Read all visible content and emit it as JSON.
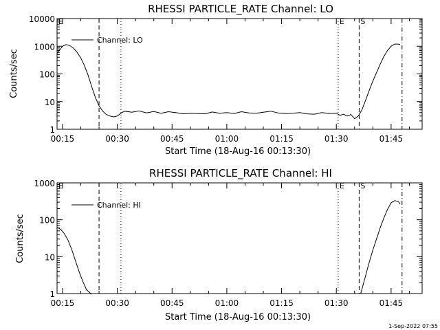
{
  "footer": {
    "date_stamp": "1-Sep-2022 07:55"
  },
  "chart_data": [
    {
      "type": "line",
      "title": "RHESSI PARTICLE_RATE Channel: LO",
      "xlabel": "Start Time (18-Aug-16 00:13:30)",
      "ylabel": "Counts/sec",
      "y_scale": "log",
      "ylim": [
        1,
        10000
      ],
      "y_ticks": [
        "1",
        "10",
        "100",
        "1000",
        "10000"
      ],
      "xlim_minutes": [
        13.5,
        113.5
      ],
      "x_ticks": [
        "00:15",
        "00:30",
        "00:45",
        "01:00",
        "01:15",
        "01:30",
        "01:45"
      ],
      "legend": {
        "label": "Channel: LO",
        "placement": "top-left"
      },
      "markers": [
        {
          "label": "E",
          "time": "00:13:30",
          "style": "solid"
        },
        {
          "label": "",
          "time": "00:25:00",
          "style": "dashed"
        },
        {
          "label": "",
          "time": "00:31:00",
          "style": "dotted"
        },
        {
          "label": "E",
          "time": "01:30:30",
          "style": "dotted"
        },
        {
          "label": "S",
          "time": "01:36:15",
          "style": "dashed"
        },
        {
          "label": "",
          "time": "01:48:00",
          "style": "dash-dot"
        }
      ],
      "series": [
        {
          "name": "Channel: LO",
          "x": [
            "00:13:30",
            "00:15:00",
            "00:16:00",
            "00:17:00",
            "00:18:00",
            "00:19:00",
            "00:20:00",
            "00:21:00",
            "00:22:00",
            "00:23:00",
            "00:24:00",
            "00:25:00",
            "00:26:00",
            "00:27:00",
            "00:28:00",
            "00:29:00",
            "00:30:00",
            "00:31:00",
            "00:32:00",
            "00:34:00",
            "00:36:00",
            "00:38:00",
            "00:40:00",
            "00:42:00",
            "00:44:00",
            "00:46:00",
            "00:48:00",
            "00:50:00",
            "00:52:00",
            "00:54:00",
            "00:56:00",
            "00:58:00",
            "01:00:00",
            "01:02:00",
            "01:04:00",
            "01:06:00",
            "01:08:00",
            "01:10:00",
            "01:12:00",
            "01:14:00",
            "01:16:00",
            "01:18:00",
            "01:20:00",
            "01:22:00",
            "01:24:00",
            "01:26:00",
            "01:28:00",
            "01:30:00",
            "01:31:00",
            "01:32:00",
            "01:33:00",
            "01:34:00",
            "01:35:00",
            "01:36:00",
            "01:37:00",
            "01:38:00",
            "01:39:00",
            "01:40:00",
            "01:41:00",
            "01:42:00",
            "01:43:00",
            "01:44:00",
            "01:45:00",
            "01:46:00",
            "01:47:00",
            "01:47:30"
          ],
          "y": [
            550,
            1000,
            1150,
            1050,
            850,
            600,
            380,
            200,
            90,
            35,
            14,
            7,
            4.5,
            3.4,
            3,
            2.8,
            3,
            3.8,
            4.5,
            4.1,
            4.6,
            3.9,
            4.4,
            3.8,
            4.3,
            4.0,
            3.6,
            3.8,
            3.7,
            3.6,
            4.2,
            3.8,
            4.0,
            3.7,
            4.3,
            3.9,
            3.8,
            4.1,
            4.5,
            3.9,
            3.7,
            3.8,
            4.0,
            3.6,
            3.5,
            4.0,
            3.7,
            3.8,
            3.2,
            3.5,
            3.0,
            3.4,
            2.4,
            3.0,
            5,
            11,
            25,
            55,
            110,
            220,
            420,
            700,
            1000,
            1200,
            1200,
            1150
          ]
        }
      ]
    },
    {
      "type": "line",
      "title": "RHESSI PARTICLE_RATE Channel: HI",
      "xlabel": "Start Time (18-Aug-16 00:13:30)",
      "ylabel": "Counts/sec",
      "y_scale": "log",
      "ylim": [
        1,
        1000
      ],
      "y_ticks": [
        "1",
        "10",
        "100",
        "1000"
      ],
      "xlim_minutes": [
        13.5,
        113.5
      ],
      "x_ticks": [
        "00:15",
        "00:30",
        "00:45",
        "01:00",
        "01:15",
        "01:30",
        "01:45"
      ],
      "legend": {
        "label": "Channel: HI",
        "placement": "top-left"
      },
      "markers": [
        {
          "label": "E",
          "time": "00:13:30",
          "style": "solid"
        },
        {
          "label": "",
          "time": "00:25:00",
          "style": "dashed"
        },
        {
          "label": "",
          "time": "00:31:00",
          "style": "dotted"
        },
        {
          "label": "E",
          "time": "01:30:30",
          "style": "dotted"
        },
        {
          "label": "S",
          "time": "01:36:15",
          "style": "dashed"
        },
        {
          "label": "",
          "time": "01:48:00",
          "style": "dash-dot"
        }
      ],
      "series": [
        {
          "name": "Channel: HI",
          "x": [
            "00:13:30",
            "00:14:30",
            "00:15:30",
            "00:16:30",
            "00:17:30",
            "00:18:30",
            "00:19:30",
            "00:20:30",
            "00:21:30",
            "00:22:30",
            "00:23:00",
            "00:23:10",
            "01:36:40",
            "01:37:00",
            "01:38:00",
            "01:39:00",
            "01:40:00",
            "01:41:00",
            "01:42:00",
            "01:43:00",
            "01:44:00",
            "01:45:00",
            "01:46:00",
            "01:47:00",
            "01:47:30"
          ],
          "y": [
            62,
            55,
            42,
            28,
            16,
            8,
            4,
            2.2,
            1.3,
            1.05,
            1.0,
            1.0,
            1.0,
            1.3,
            3,
            7,
            15,
            30,
            60,
            110,
            190,
            290,
            330,
            310,
            270
          ]
        }
      ]
    }
  ]
}
